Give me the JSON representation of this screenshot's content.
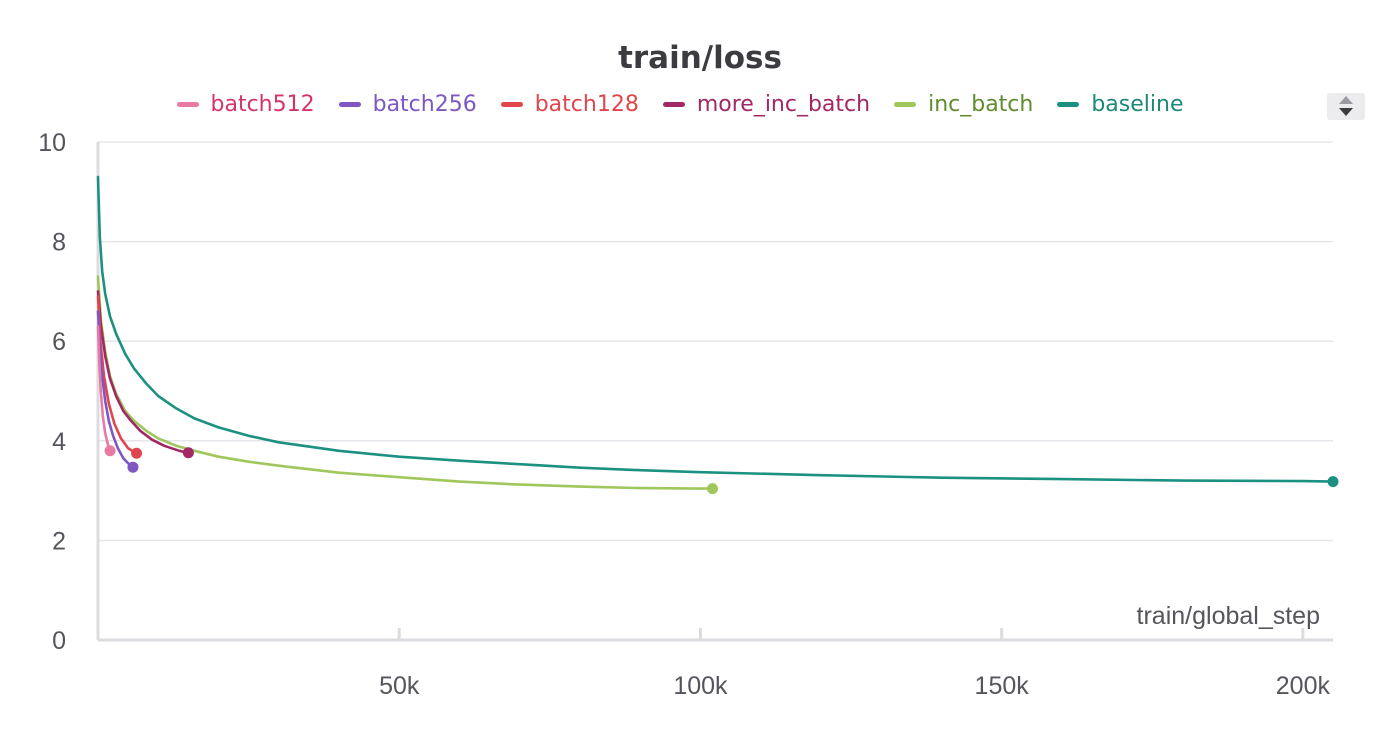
{
  "chart_data": {
    "type": "line",
    "title": "train/loss",
    "xlabel": "train/global_step",
    "ylabel": "",
    "xlim": [
      0,
      205000
    ],
    "ylim": [
      0,
      10
    ],
    "x_ticks": [
      50000,
      100000,
      150000,
      200000
    ],
    "x_tick_labels": [
      "50k",
      "100k",
      "150k",
      "200k"
    ],
    "y_ticks": [
      0,
      2,
      4,
      6,
      8,
      10
    ],
    "y_tick_labels": [
      "0",
      "2",
      "4",
      "6",
      "8",
      "10"
    ],
    "grid": true,
    "legend_position": "top",
    "series": [
      {
        "name": "batch512",
        "color": "#e87ba4",
        "text_color": "#d6336c",
        "x": [
          0,
          200,
          500,
          800,
          1200,
          1600,
          2000
        ],
        "y": [
          6.3,
          5.6,
          4.95,
          4.5,
          4.15,
          3.95,
          3.8
        ]
      },
      {
        "name": "batch256",
        "color": "#7e57c2",
        "text_color": "#7e57c2",
        "x": [
          0,
          300,
          700,
          1200,
          1800,
          2500,
          3300,
          4200,
          5000,
          5800
        ],
        "y": [
          6.6,
          5.9,
          5.3,
          4.8,
          4.4,
          4.1,
          3.85,
          3.65,
          3.55,
          3.47
        ]
      },
      {
        "name": "batch128",
        "color": "#e0474c",
        "text_color": "#e0474c",
        "x": [
          0,
          400,
          1000,
          1800,
          2700,
          3800,
          5000,
          6400
        ],
        "y": [
          6.9,
          6.0,
          5.3,
          4.75,
          4.35,
          4.05,
          3.85,
          3.75
        ]
      },
      {
        "name": "more_inc_batch",
        "color": "#a12864",
        "text_color": "#a12864",
        "x": [
          0,
          500,
          1200,
          2000,
          3000,
          4200,
          5500,
          7000,
          9000,
          11000,
          13500,
          15000
        ],
        "y": [
          7.0,
          6.3,
          5.7,
          5.25,
          4.9,
          4.6,
          4.4,
          4.2,
          4.02,
          3.9,
          3.8,
          3.76
        ]
      },
      {
        "name": "inc_batch",
        "color": "#a0c75c",
        "text_color": "#5f8c2e",
        "x": [
          0,
          500,
          1200,
          2000,
          3000,
          4500,
          6000,
          8000,
          10000,
          13000,
          16000,
          20000,
          25000,
          30000,
          40000,
          50000,
          60000,
          70000,
          80000,
          90000,
          100000,
          102000
        ],
        "y": [
          7.3,
          6.4,
          5.8,
          5.3,
          4.95,
          4.6,
          4.4,
          4.2,
          4.05,
          3.9,
          3.8,
          3.68,
          3.58,
          3.5,
          3.36,
          3.27,
          3.18,
          3.12,
          3.08,
          3.05,
          3.04,
          3.04
        ]
      },
      {
        "name": "baseline",
        "color": "#1c9181",
        "text_color": "#1c8878",
        "x": [
          0,
          300,
          700,
          1200,
          2000,
          3000,
          4500,
          6000,
          8000,
          10000,
          13000,
          16000,
          20000,
          25000,
          30000,
          40000,
          50000,
          60000,
          70000,
          80000,
          90000,
          100000,
          120000,
          140000,
          160000,
          180000,
          200000,
          205000
        ],
        "y": [
          9.3,
          8.1,
          7.4,
          6.95,
          6.5,
          6.15,
          5.75,
          5.45,
          5.15,
          4.9,
          4.65,
          4.45,
          4.27,
          4.1,
          3.97,
          3.8,
          3.68,
          3.6,
          3.53,
          3.46,
          3.41,
          3.37,
          3.31,
          3.26,
          3.23,
          3.2,
          3.19,
          3.18
        ]
      }
    ]
  }
}
